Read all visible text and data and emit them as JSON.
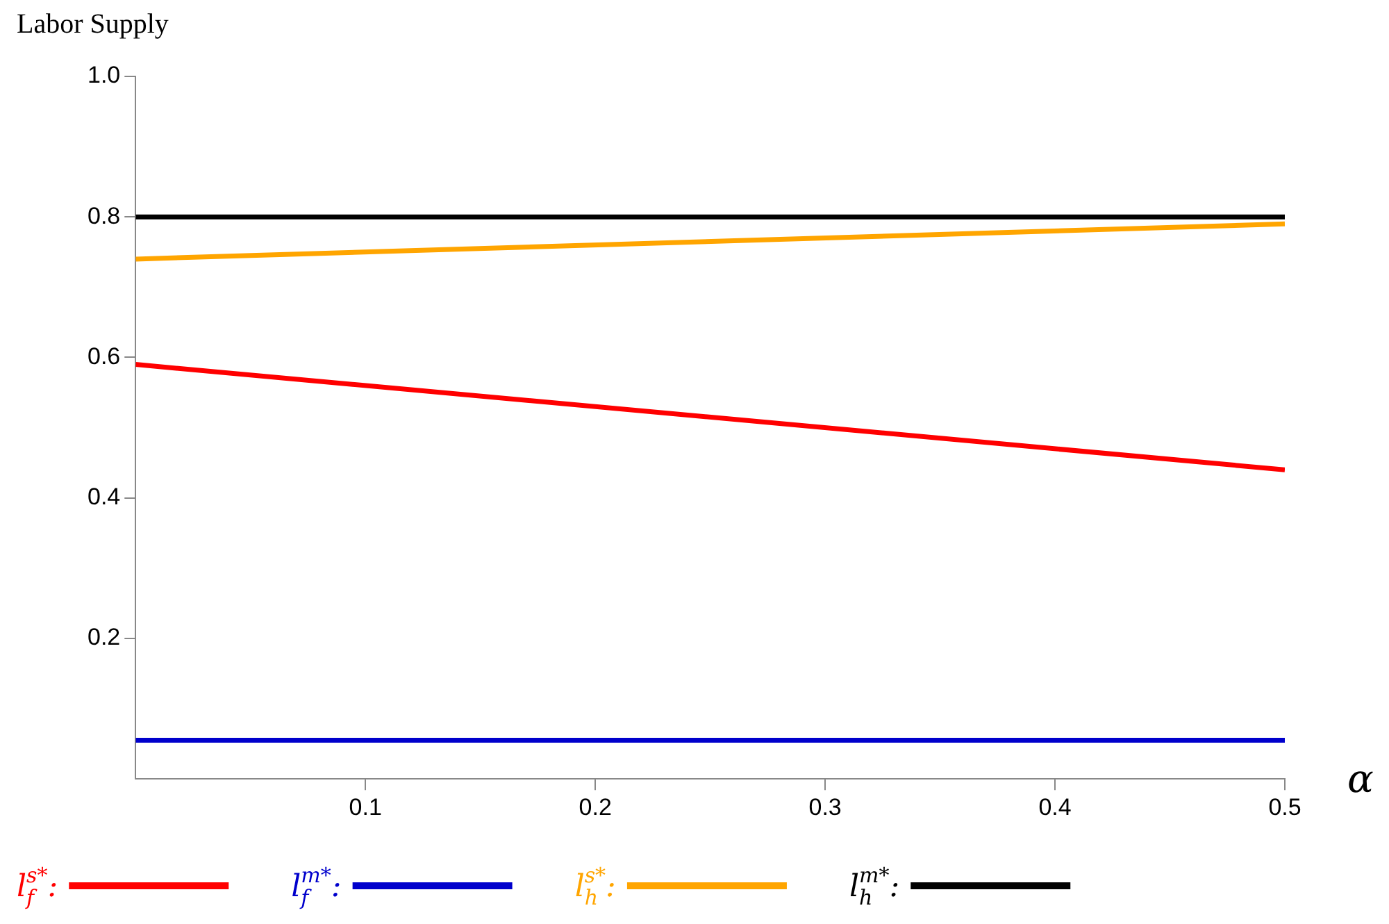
{
  "chart_data": {
    "type": "line",
    "ylabel": "Labor Supply",
    "xlabel": "α",
    "x": [
      0,
      0.5
    ],
    "series": [
      {
        "name": "l$_{f}$$^{s*}$:",
        "color": "#ff0000",
        "values": [
          0.59,
          0.44
        ]
      },
      {
        "name": "l$_{f}$$^{m*}$:",
        "color": "#0000cc",
        "values": [
          0.055,
          0.055
        ]
      },
      {
        "name": "l$_{h}$$^{s*}$:",
        "color": "#ffa500",
        "values": [
          0.74,
          0.79
        ]
      },
      {
        "name": "l$_{h}$$^{m*}$:",
        "color": "#000000",
        "values": [
          0.8,
          0.8
        ]
      }
    ],
    "xlim": [
      0,
      0.5
    ],
    "xticks": [
      0.1,
      0.2,
      0.3,
      0.4,
      0.5
    ],
    "ylim": [
      0,
      1.0
    ],
    "yticks": [
      0.2,
      0.4,
      0.6,
      0.8,
      {
        "value": 1.0,
        "label": "1.0"
      }
    ],
    "grid": false,
    "legend": "bottom",
    "marker": "none",
    "line_style": "solid"
  }
}
